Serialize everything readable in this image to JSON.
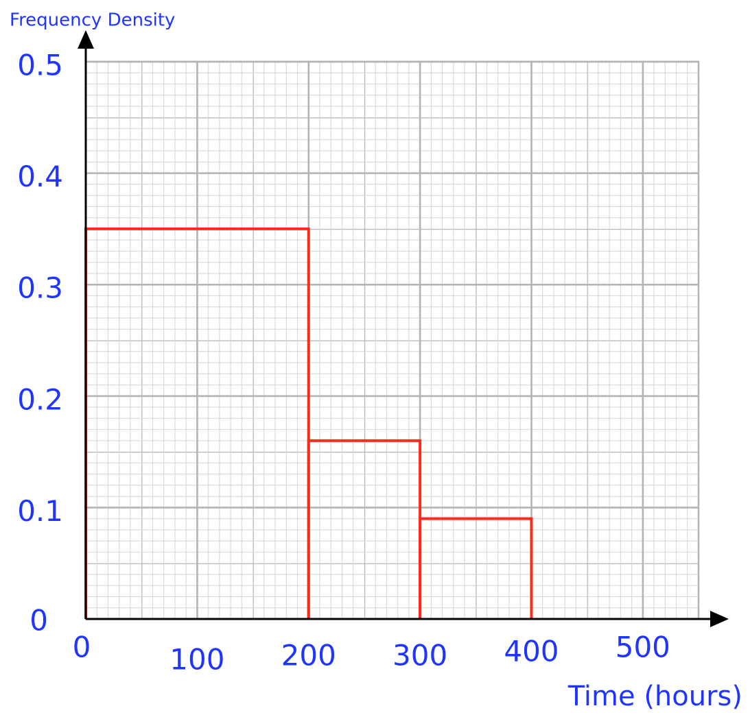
{
  "chart_data": {
    "type": "histogram",
    "title": "Frequency Density",
    "xlabel": "Time (hours)",
    "bins": [
      0,
      200,
      300,
      400
    ],
    "values": [
      0.35,
      0.16,
      0.09
    ],
    "color": "#ff2a1a",
    "xlim": [
      0,
      550
    ],
    "xticks": [
      0,
      100,
      200,
      300,
      400,
      500
    ],
    "ylim": [
      0,
      0.5
    ],
    "yticks": [
      0,
      0.1,
      0.2,
      0.3,
      0.4,
      0.5
    ],
    "grid": true
  }
}
